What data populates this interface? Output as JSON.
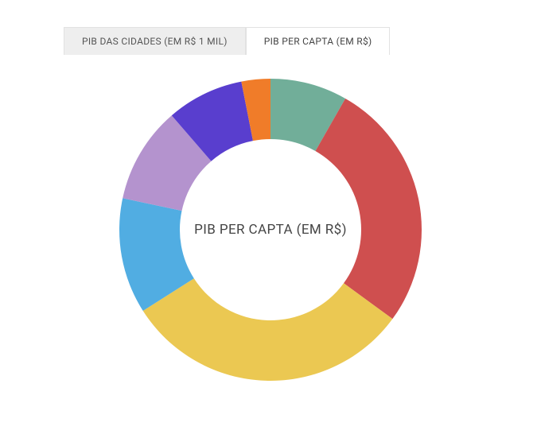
{
  "tabs": [
    {
      "label": "PIB DAS CIDADES (EM R$ 1 MIL)",
      "active": false
    },
    {
      "label": "PIB PER CAPTA (EM R$)",
      "active": true
    }
  ],
  "chart": {
    "type": "donut",
    "center_label": "PIB PER CAPTA (EM R$)",
    "center_label_fontsize": 17,
    "center_label_color": "#444444",
    "outer_radius": 190,
    "inner_radius": 114,
    "background_color": "#ffffff",
    "start_angle_deg": 0,
    "segments": [
      {
        "value": 8,
        "color": "#71ae99"
      },
      {
        "value": 26,
        "color": "#cf4f4f"
      },
      {
        "value": 30,
        "color": "#ebc852"
      },
      {
        "value": 12,
        "color": "#51ade2"
      },
      {
        "value": 10,
        "color": "#b493ce"
      },
      {
        "value": 8,
        "color": "#593ece"
      },
      {
        "value": 3,
        "color": "#f07c29"
      }
    ]
  }
}
